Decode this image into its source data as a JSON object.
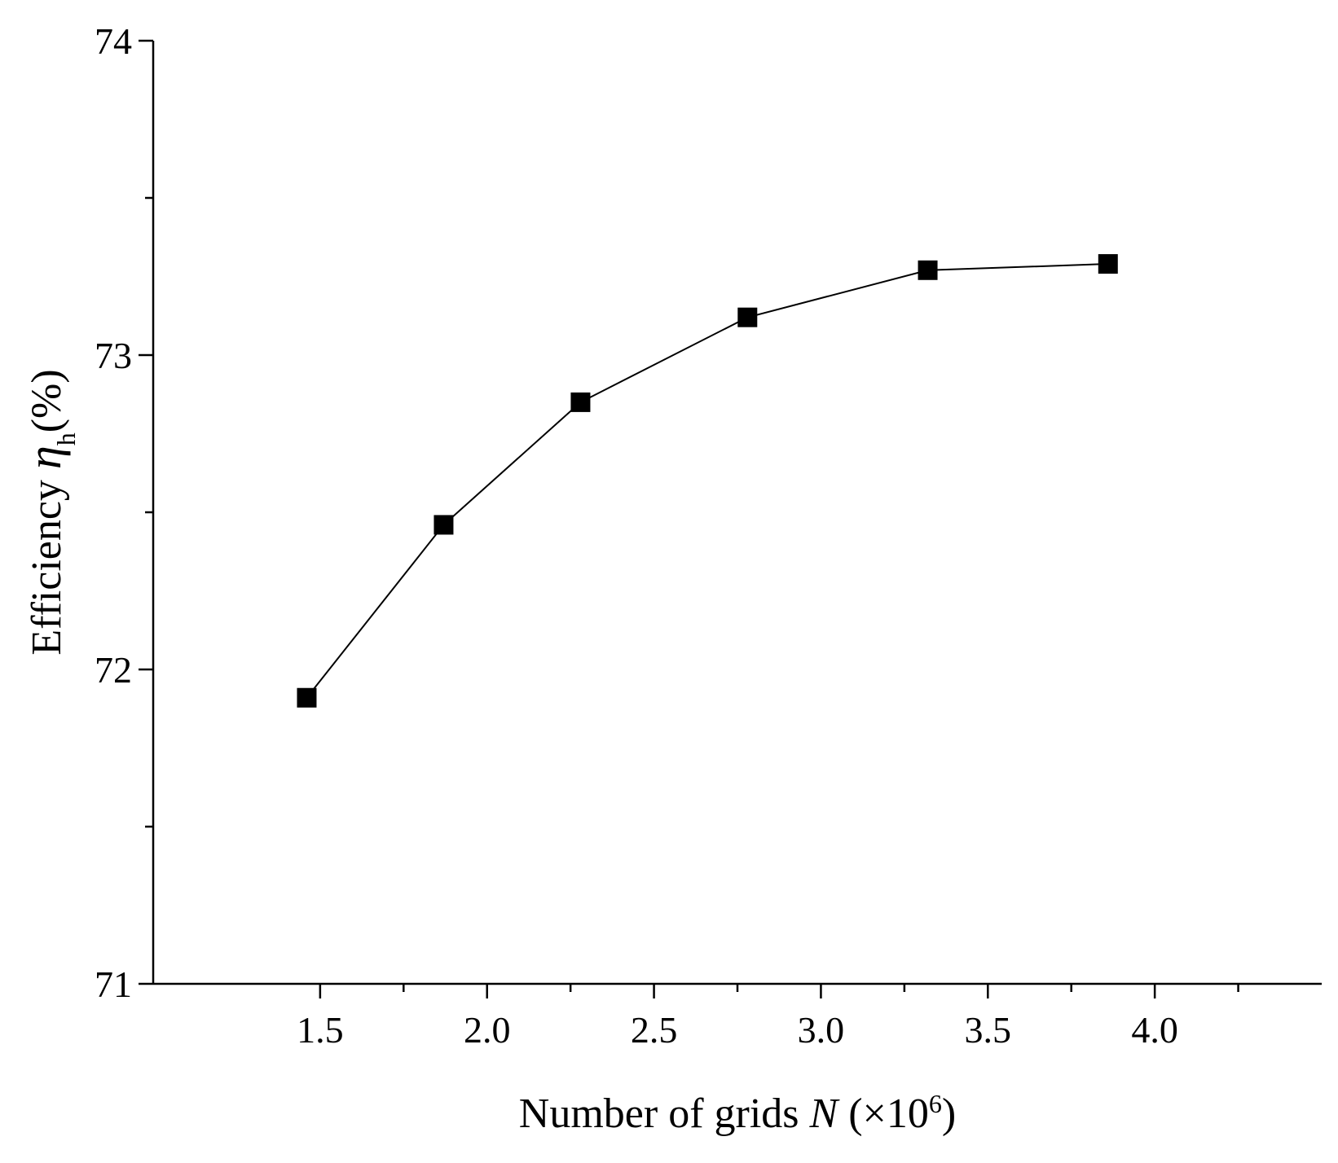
{
  "chart_data": {
    "type": "line",
    "x": [
      1.46,
      1.87,
      2.28,
      2.78,
      3.32,
      3.86
    ],
    "series": [
      {
        "values": [
          71.91,
          72.46,
          72.85,
          73.12,
          73.27,
          73.29
        ]
      }
    ],
    "xlabel": {
      "prefix": "Number of grids ",
      "var": "N",
      "mid": " (×10",
      "sup": "6",
      "suffix": ")"
    },
    "ylabel": {
      "prefix": "Efficiency ",
      "var": "η",
      "sub": "h",
      "suffix": "(%)"
    },
    "xlim": [
      1.0,
      4.5
    ],
    "ylim": [
      71,
      74
    ],
    "x_major_ticks": [
      1.5,
      2.0,
      2.5,
      3.0,
      3.5,
      4.0
    ],
    "x_tick_labels": [
      "1.5",
      "2.0",
      "2.5",
      "3.0",
      "3.5",
      "4.0"
    ],
    "x_minor_ticks": [
      1.75,
      2.25,
      2.75,
      3.25,
      3.75,
      4.25
    ],
    "y_major_ticks": [
      71,
      72,
      73,
      74
    ],
    "y_tick_labels": [
      "71",
      "72",
      "73",
      "74"
    ],
    "y_minor_ticks": [
      71.5,
      72.5,
      73.5
    ],
    "marker": "square",
    "line_color": "#000000",
    "grid": false
  }
}
